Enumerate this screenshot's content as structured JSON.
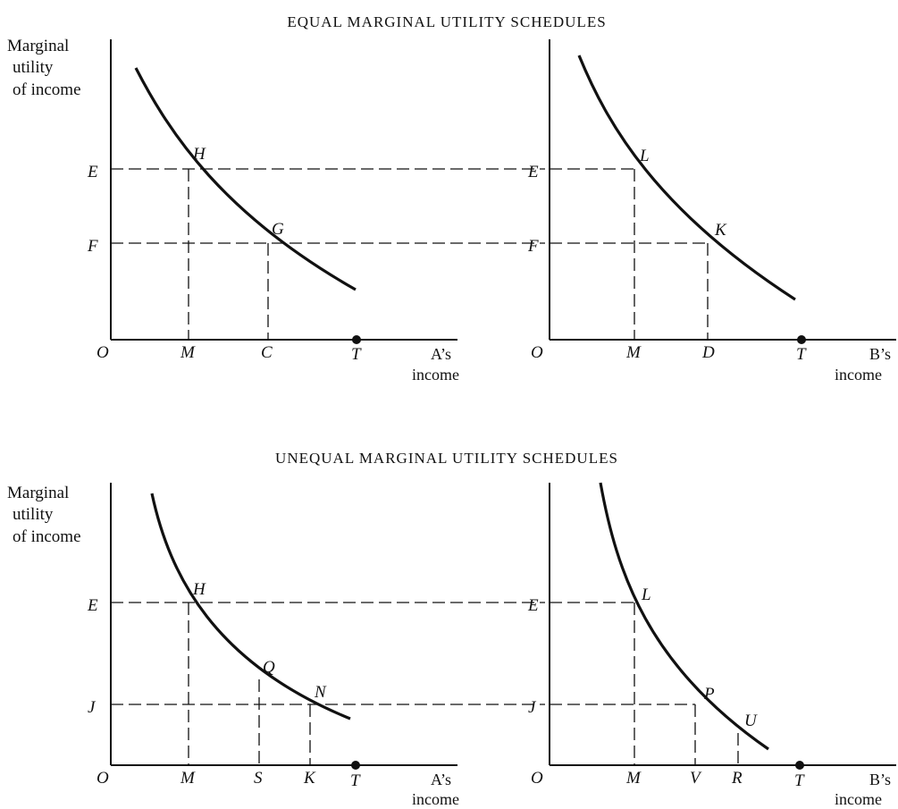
{
  "titles": {
    "top": "EQUAL MARGINAL UTILITY SCHEDULES",
    "bottom": "UNEQUAL MARGINAL UTILITY SCHEDULES"
  },
  "axis_text": {
    "ylabel_line1": "Marginal",
    "ylabel_line2": "utility",
    "ylabel_line3": "of income",
    "a_income_line1": "A’s",
    "a_income_line2": "income",
    "b_income_line1": "B’s",
    "b_income_line2": "income"
  },
  "points": {
    "O": "O",
    "E": "E",
    "F": "F",
    "J": "J",
    "M": "M",
    "C": "C",
    "D": "D",
    "T": "T",
    "S": "S",
    "K": "K",
    "V": "V",
    "R": "R",
    "H": "H",
    "G": "G",
    "L": "L",
    "Q": "Q",
    "N": "N",
    "P": "P",
    "U": "U"
  }
}
